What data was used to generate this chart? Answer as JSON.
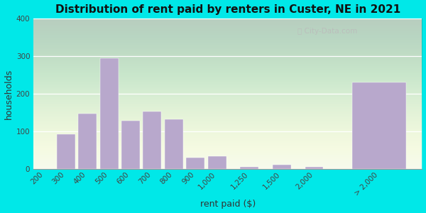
{
  "title": "Distribution of rent paid by renters in Custer, NE in 2021",
  "xlabel": "rent paid ($)",
  "ylabel": "households",
  "bar_color": "#b8a8cc",
  "bar_edge_color": "#c8b8dc",
  "background_outer": "#00e8e8",
  "background_inner": "#e8f0e0",
  "categories": [
    "200",
    "300",
    "400",
    "500",
    "600",
    "700",
    "800",
    "900",
    "1,000",
    "1,250",
    "1,500",
    "2,000",
    "> 2,000"
  ],
  "values": [
    0,
    93,
    148,
    295,
    128,
    152,
    132,
    30,
    35,
    5,
    12,
    5,
    230
  ],
  "ylim": [
    0,
    400
  ],
  "yticks": [
    0,
    100,
    200,
    300,
    400
  ],
  "watermark": "City-Data.com",
  "title_fontsize": 11,
  "axis_label_fontsize": 9,
  "tick_fontsize": 7.5
}
